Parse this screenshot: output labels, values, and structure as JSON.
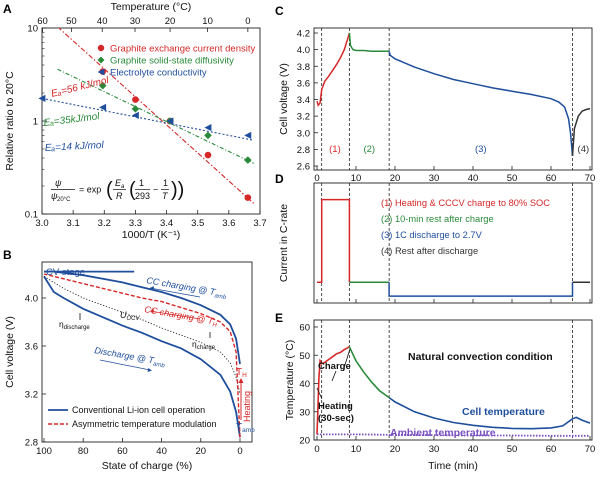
{
  "chart_data": [
    {
      "panel": "A",
      "type": "scatter",
      "xlabel": "1000/T (K⁻¹)",
      "ylabel": "Relative ratio to 20°C",
      "top_axis_label": "Temperature (°C)",
      "xlim": [
        3.0,
        3.7
      ],
      "ylim": [
        0.1,
        10
      ],
      "y_scale": "log",
      "xticks": [
        "3.0",
        "3.1",
        "3.2",
        "3.3",
        "3.4",
        "3.5",
        "3.6",
        "3.7"
      ],
      "yticks": [
        "0.1",
        "1",
        "10"
      ],
      "top_ticks": [
        "60",
        "50",
        "40",
        "30",
        "20",
        "10",
        "0"
      ],
      "top_tick_values": [
        60,
        50,
        40,
        30,
        20,
        10,
        0
      ],
      "legend_position": "top-right",
      "series": [
        {
          "name": "Graphite exchange current density",
          "color": "#d62728",
          "marker": "circle",
          "x": [
            3.195,
            3.3,
            3.411,
            3.533,
            3.661
          ],
          "y": [
            3.4,
            1.7,
            1.0,
            0.43,
            0.15
          ],
          "fit": {
            "x": [
              3.05,
              3.68
            ],
            "y": [
              10.3,
              0.13
            ]
          },
          "annotation": "Eₐ=56 kJ/mol"
        },
        {
          "name": "Graphite solid-state diffusivity",
          "color": "#2a8a3a",
          "marker": "diamond",
          "x": [
            3.195,
            3.3,
            3.411,
            3.533,
            3.661
          ],
          "y": [
            2.4,
            1.35,
            1.0,
            0.7,
            0.38
          ],
          "fit": {
            "x": [
              3.05,
              3.68
            ],
            "y": [
              3.6,
              0.35
            ]
          },
          "annotation": "Eₐ=35kJ/mol"
        },
        {
          "name": "Electrolyte conductivity",
          "color": "#1f4e9c",
          "marker": "triangle-left",
          "x": [
            3.0,
            3.195,
            3.3,
            3.411,
            3.533,
            3.661
          ],
          "y": [
            1.75,
            1.4,
            1.15,
            1.0,
            0.85,
            0.7
          ],
          "fit": {
            "x": [
              3.0,
              3.68
            ],
            "y": [
              1.75,
              0.62
            ]
          },
          "annotation": "Eₐ=14 kJ/mol"
        }
      ],
      "equation": {
        "lhs_num": "ψ",
        "lhs_den": "ψ",
        "lhs_sub": "20°C",
        "eq": "= exp",
        "frac1_num": "E",
        "frac1_num_sub": "a",
        "frac1_den": "R",
        "frac2_num": "1",
        "frac2_den": "293",
        "minus": "−",
        "frac3_num": "1",
        "frac3_den": "T"
      }
    },
    {
      "panel": "B",
      "type": "line",
      "xlabel": "State of charge (%)",
      "ylabel": "Cell voltage (V)",
      "xlim": [
        100,
        0
      ],
      "ylim": [
        2.8,
        4.3
      ],
      "xticks": [
        "100",
        "80",
        "60",
        "40",
        "20",
        "0"
      ],
      "yticks": [
        "2.8",
        "3.2",
        "3.6",
        "4.0"
      ],
      "legend_position": "bottom-left",
      "series": [
        {
          "name": "Conventional Li-ion cell operation",
          "color": "#1f4e9c",
          "style": "solid"
        },
        {
          "name": "Asymmetric temperature modulation",
          "color": "#d62728",
          "style": "dashed"
        }
      ],
      "curves": {
        "cc_charge_amb": {
          "x": [
            0,
            2,
            5,
            10,
            20,
            30,
            40,
            50,
            60,
            70,
            80,
            90,
            95,
            100
          ],
          "y": [
            3.45,
            3.66,
            3.78,
            3.86,
            3.94,
            4.0,
            4.05,
            4.09,
            4.13,
            4.16,
            4.19,
            4.21,
            4.22,
            4.22
          ]
        },
        "cv": {
          "x": [
            54,
            100
          ],
          "y": [
            4.22,
            4.22
          ]
        },
        "discharge_amb": {
          "x": [
            100,
            95,
            90,
            80,
            70,
            60,
            50,
            40,
            30,
            20,
            10,
            5,
            2,
            0
          ],
          "y": [
            4.18,
            4.05,
            4.0,
            3.91,
            3.84,
            3.77,
            3.71,
            3.64,
            3.58,
            3.49,
            3.36,
            3.22,
            3.05,
            2.84
          ]
        },
        "ocv": {
          "x": [
            100,
            90,
            80,
            70,
            60,
            50,
            40,
            30,
            20,
            10,
            5,
            2,
            0
          ],
          "y": [
            4.18,
            4.08,
            4.0,
            3.94,
            3.88,
            3.82,
            3.75,
            3.69,
            3.63,
            3.55,
            3.46,
            3.34,
            3.2
          ]
        },
        "cc_charge_h": {
          "x": [
            0,
            1,
            2,
            5,
            10,
            20,
            30,
            40,
            50,
            60,
            70,
            80,
            90,
            100
          ],
          "y": [
            2.84,
            3.2,
            3.55,
            3.72,
            3.8,
            3.87,
            3.92,
            3.97,
            4.0,
            4.04,
            4.08,
            4.12,
            4.16,
            4.2
          ]
        },
        "heating": {
          "x": [
            0,
            0
          ],
          "y": [
            2.84,
            3.45
          ]
        }
      },
      "annotations": {
        "cv": "CV stage",
        "cc_amb_main": "CC charging @ ",
        "cc_amb_sub": "amb",
        "cc_h_main": "CC charging @ ",
        "cc_h_sub": "H",
        "dis_main": "Discharge @ ",
        "dis_sub": "amb",
        "ocv": "U",
        "ocv_sub": "OCV",
        "eta_dis": "η",
        "eta_dis_sub": "discharge",
        "eta_ch": "η",
        "eta_ch_sub": "charge",
        "heating": "Heating",
        "th": "T",
        "th_sub": "H",
        "tamb": "T",
        "tamb_sub": "amb",
        "t_var": "T"
      }
    },
    {
      "panel": "C",
      "type": "line",
      "ylabel": "Cell voltage (V)",
      "xlim": [
        0,
        70
      ],
      "ylim": [
        2.6,
        4.2
      ],
      "xticks": [
        "0",
        "10",
        "20",
        "30",
        "40",
        "50",
        "60",
        "70"
      ],
      "yticks": [
        "2.6",
        "2.8",
        "3.0",
        "3.2",
        "3.4",
        "3.6",
        "3.8",
        "4.0",
        "4.2"
      ],
      "vlines": [
        1.2,
        8.3,
        18.5,
        65.5
      ],
      "phase_labels": [
        "(1)",
        "(2)",
        "(3)",
        "(4)"
      ],
      "phase_colors": [
        "#d62728",
        "#2a8a3a",
        "#1f4e9c",
        "#333333"
      ],
      "series": [
        {
          "name": "(1)",
          "color": "#d62728",
          "x": [
            0,
            0.3,
            0.8,
            1.2,
            2,
            3,
            4,
            5,
            6,
            7,
            7.8,
            8.3
          ],
          "y": [
            3.38,
            3.33,
            3.36,
            3.52,
            3.62,
            3.68,
            3.75,
            3.82,
            3.9,
            4.0,
            4.12,
            4.2
          ]
        },
        {
          "name": "(2)",
          "color": "#2a8a3a",
          "x": [
            8.3,
            8.6,
            9.2,
            10,
            12,
            14,
            16,
            18.5
          ],
          "y": [
            4.2,
            4.05,
            4.0,
            3.99,
            3.99,
            3.98,
            3.98,
            3.98
          ]
        },
        {
          "name": "(3)",
          "color": "#1f4e9c",
          "x": [
            18.5,
            18.8,
            20,
            25,
            30,
            35,
            40,
            45,
            50,
            55,
            60,
            62,
            63.5,
            64.5,
            65,
            65.5
          ],
          "y": [
            3.98,
            3.93,
            3.89,
            3.79,
            3.71,
            3.64,
            3.59,
            3.54,
            3.5,
            3.46,
            3.41,
            3.37,
            3.31,
            3.17,
            3.0,
            2.72
          ]
        },
        {
          "name": "(4)",
          "color": "#333333",
          "x": [
            65.5,
            66,
            67,
            68,
            69,
            70
          ],
          "y": [
            2.72,
            3.05,
            3.2,
            3.26,
            3.28,
            3.29
          ]
        }
      ]
    },
    {
      "panel": "D",
      "type": "line",
      "ylabel": "Current in C-rate",
      "xlim": [
        0,
        70
      ],
      "xticks": [
        "0",
        "10",
        "20",
        "30",
        "40",
        "50",
        "60",
        "70"
      ],
      "legend_position": "top-right",
      "legend": [
        {
          "text": "(1) Heating & CCCV charge to 80% SOC",
          "color": "#d62728"
        },
        {
          "text": "(2) 10-min rest after charge",
          "color": "#2a8a3a"
        },
        {
          "text": "(3) 1C discharge to 2.7V",
          "color": "#1f4e9c"
        },
        {
          "text": "(4) Rest after discharge",
          "color": "#333333"
        }
      ],
      "series": [
        {
          "name": "(1)",
          "color": "#d62728",
          "x": [
            0,
            1.2,
            1.2,
            8.3,
            8.3
          ],
          "y": [
            0,
            0,
            6,
            6,
            0
          ]
        },
        {
          "name": "(2)",
          "color": "#2a8a3a",
          "x": [
            8.3,
            18.5
          ],
          "y": [
            0,
            0
          ]
        },
        {
          "name": "(3)",
          "color": "#1f4e9c",
          "x": [
            18.5,
            18.5,
            65.5,
            65.5
          ],
          "y": [
            0,
            -1,
            -1,
            0
          ]
        },
        {
          "name": "(4)",
          "color": "#333333",
          "x": [
            65.5,
            70
          ],
          "y": [
            0,
            0
          ]
        }
      ]
    },
    {
      "panel": "E",
      "type": "line",
      "xlabel": "Time (min)",
      "ylabel": "Temperature (°C)",
      "xlim": [
        0,
        70
      ],
      "ylim": [
        20,
        60
      ],
      "xticks": [
        "0",
        "10",
        "20",
        "30",
        "40",
        "50",
        "60",
        "70"
      ],
      "yticks": [
        "20",
        "30",
        "40",
        "50",
        "60"
      ],
      "annotations": {
        "charge": "Charge",
        "heating": "Heating",
        "heating2": "(30-sec)",
        "natural": "Natural convection condition",
        "cell": "Cell temperature",
        "ambient": "Ambient temperature"
      },
      "series": [
        {
          "name": "Cell temperature",
          "color": "#1f4e9c",
          "x": [
            18.5,
            20,
            25,
            30,
            35,
            40,
            45,
            50,
            55,
            60,
            63,
            65.5,
            66.5,
            68,
            70
          ],
          "y": [
            35,
            33.5,
            30,
            27.8,
            26.2,
            25.2,
            24.5,
            24.1,
            24,
            24.3,
            25,
            27.5,
            28,
            27,
            26
          ]
        },
        {
          "name": "heating",
          "color": "#d62728",
          "x": [
            0,
            0.2,
            0.5,
            0.8,
            1.2,
            2,
            3,
            4,
            5,
            6,
            7,
            8.3
          ],
          "y": [
            22,
            30,
            42,
            48,
            47,
            47.5,
            48.5,
            49.5,
            50.5,
            51,
            52,
            53
          ]
        },
        {
          "name": "rest",
          "color": "#2a8a3a",
          "x": [
            8.3,
            10,
            12,
            14,
            16,
            18.5
          ],
          "y": [
            53,
            48,
            44,
            40.5,
            37.5,
            35
          ]
        },
        {
          "name": "Ambient temperature",
          "color": "#7a4fc0",
          "x": [
            0,
            10,
            20,
            30,
            40,
            50,
            60,
            70
          ],
          "y": [
            22,
            22,
            21.8,
            21.7,
            21.6,
            21.6,
            21.5,
            21.5
          ]
        }
      ]
    }
  ]
}
